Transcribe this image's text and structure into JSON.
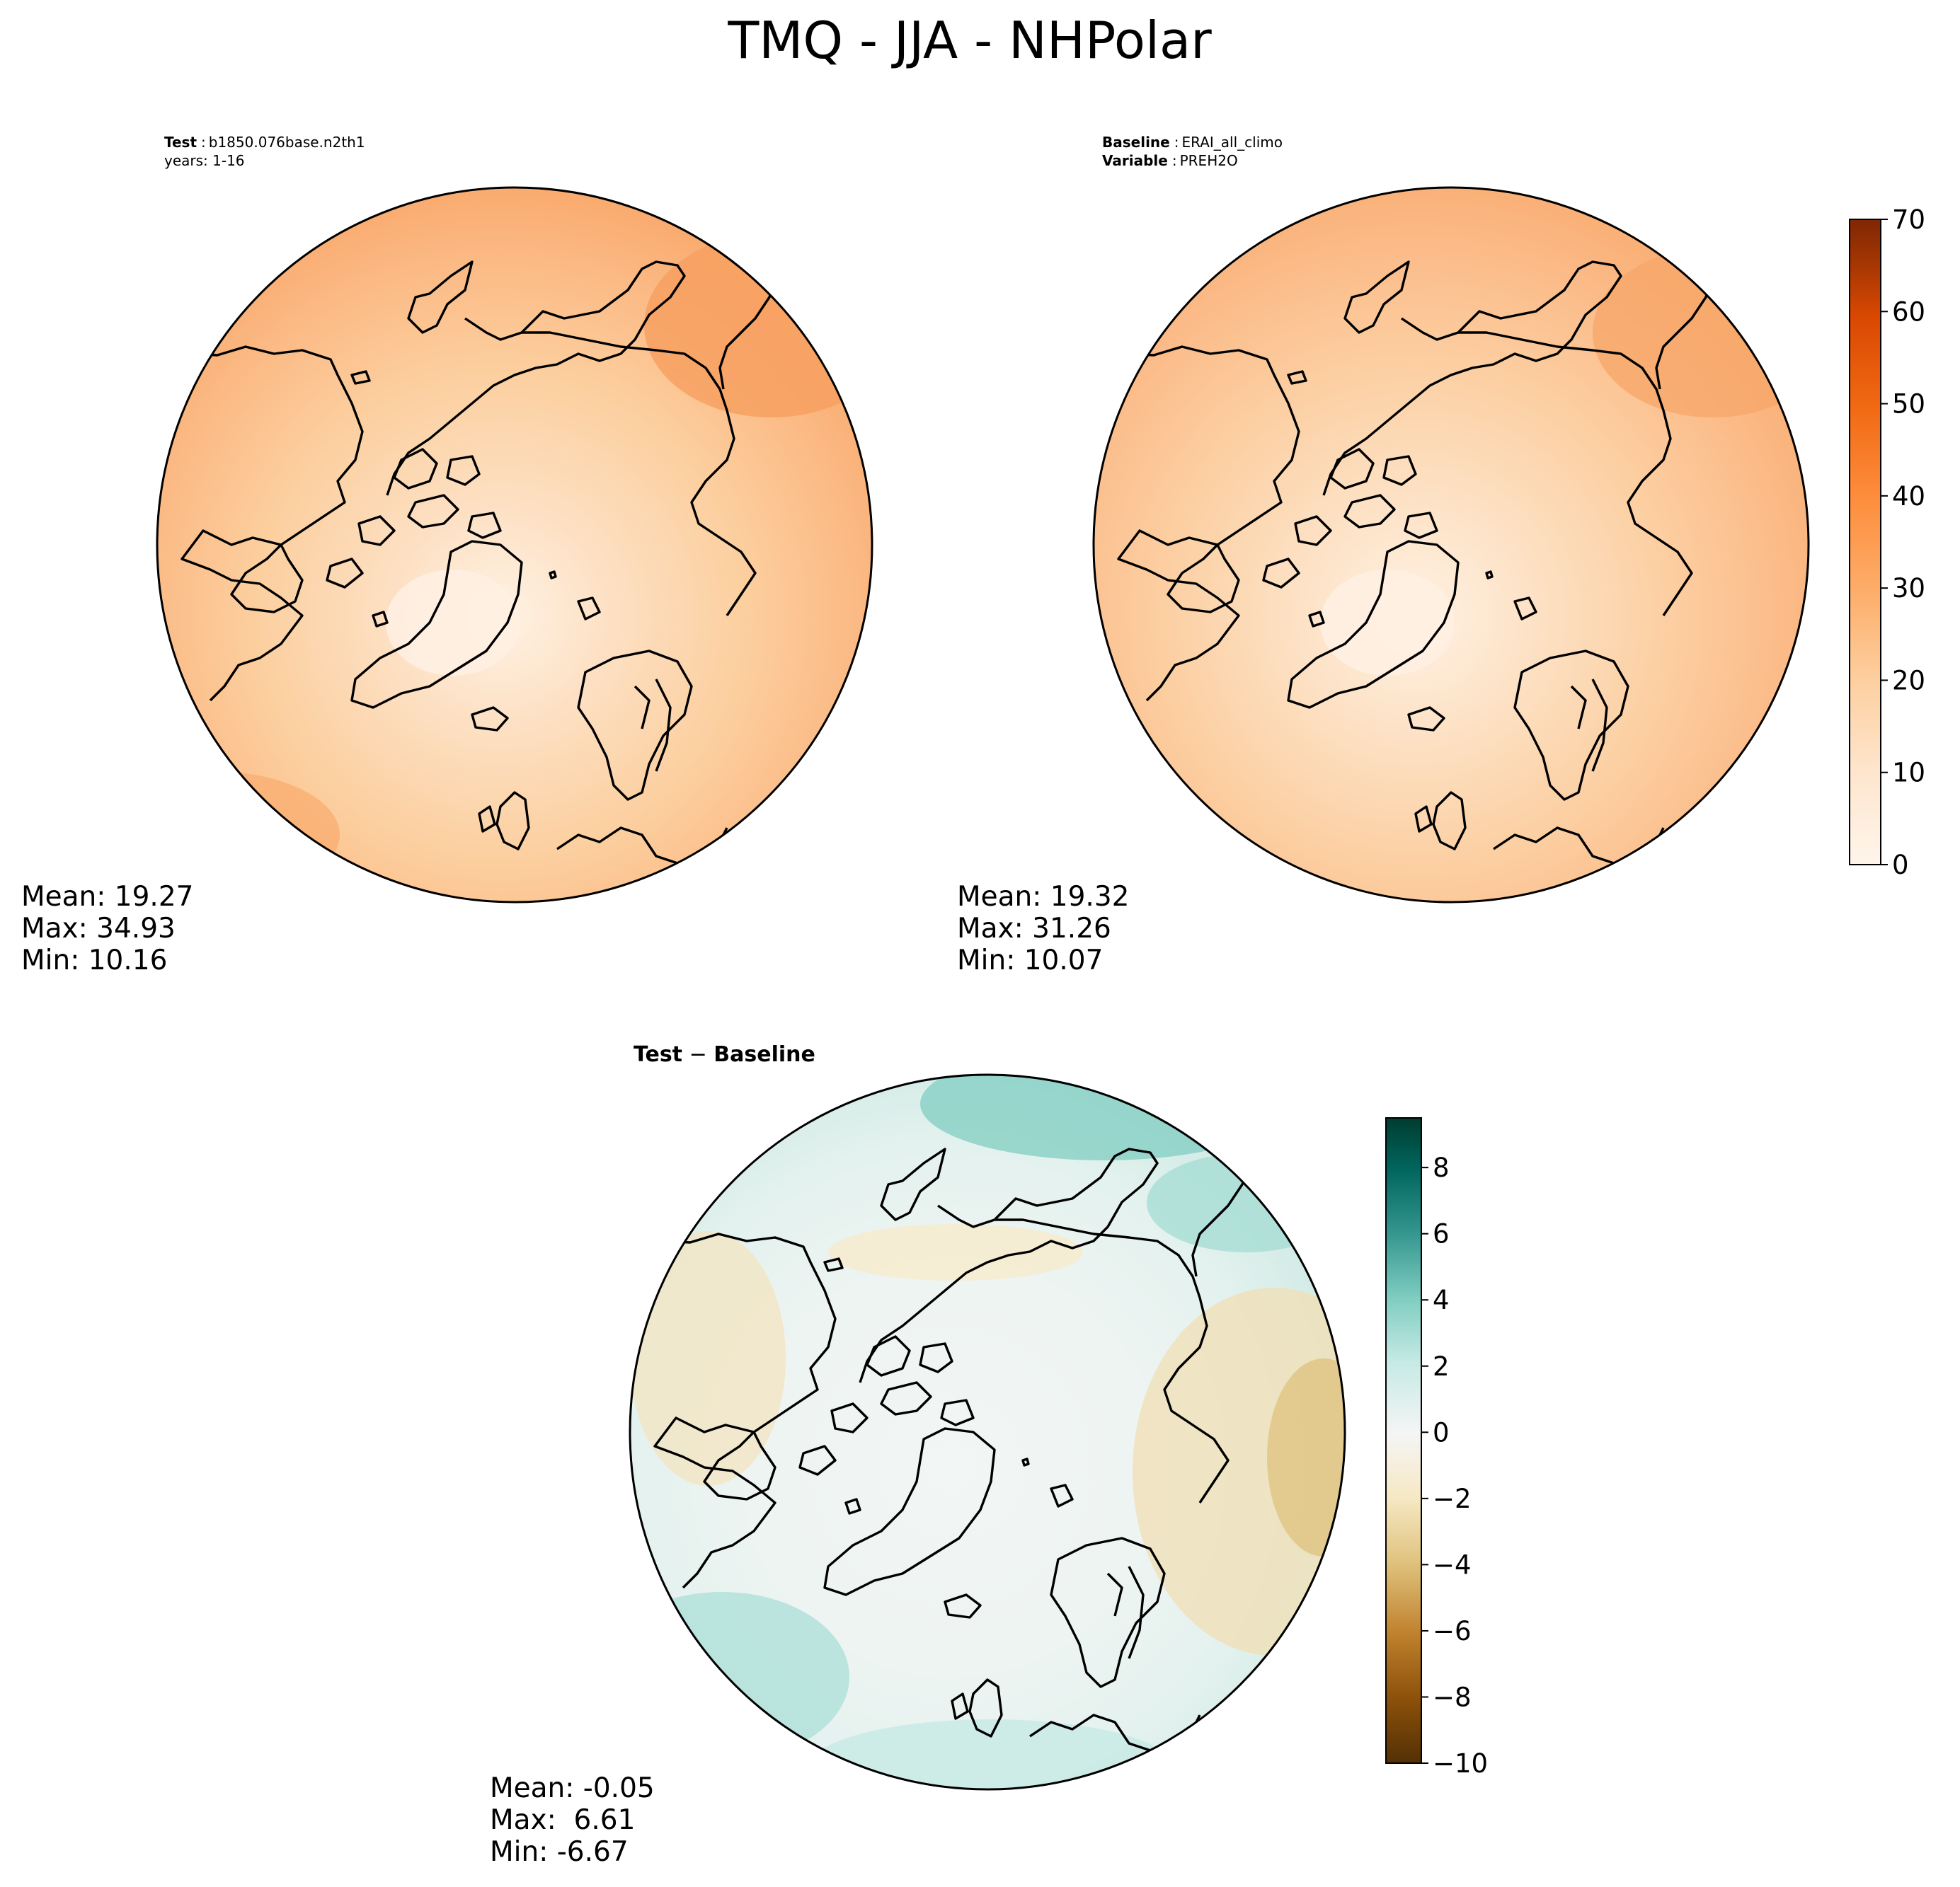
{
  "figure": {
    "title": "TMQ - JJA - NHPolar"
  },
  "test_panel": {
    "name_key": "Test",
    "name_value": "b1850.076base.n2th1",
    "years": "years: 1-16",
    "stats": {
      "mean": "Mean: 19.27",
      "max": "Max: 34.93",
      "min": "Min: 10.16"
    }
  },
  "baseline_panel": {
    "name_key": "Baseline",
    "name_value": "ERAI_all_climo",
    "variable_key": "Variable",
    "variable_value": "PREH2O",
    "stats": {
      "mean": "Mean: 19.32",
      "max": "Max: 31.26",
      "min": "Min: 10.07"
    }
  },
  "diff_panel": {
    "title_a": "Test",
    "title_sep": " − ",
    "title_b": "Baseline",
    "stats": {
      "mean": "Mean: -0.05",
      "max": "Max:  6.61",
      "min": "Min: -6.67"
    }
  },
  "colors": {
    "map_colormap": [
      "#fff5eb",
      "#fee6ce",
      "#fdd0a2",
      "#fdae6b",
      "#fd8d3c",
      "#f16913",
      "#d94801",
      "#a63603",
      "#7f2704"
    ],
    "diff_colormap": [
      "#543005",
      "#8c510a",
      "#bf812d",
      "#dfc27d",
      "#f6e8c3",
      "#f5f5f5",
      "#c7eae5",
      "#80cdc1",
      "#35978f",
      "#01665e",
      "#003c30"
    ],
    "coastline": "#000000"
  },
  "chart_data": [
    {
      "type": "heatmap",
      "panel": "test",
      "projection": "north-polar-stereographic",
      "variable": "TMQ",
      "season": "JJA",
      "region": "NHPolar",
      "mean": 19.27,
      "max": 34.93,
      "min": 10.16
    },
    {
      "type": "heatmap",
      "panel": "baseline",
      "projection": "north-polar-stereographic",
      "variable": "PREH2O",
      "mean": 19.32,
      "max": 31.26,
      "min": 10.07,
      "colorbar": {
        "range": [
          0,
          70
        ],
        "ticks": [
          0,
          10,
          20,
          30,
          40,
          50,
          60,
          70
        ],
        "tick_labels": [
          "0",
          "10",
          "20",
          "30",
          "40",
          "50",
          "60",
          "70"
        ]
      }
    },
    {
      "type": "heatmap",
      "panel": "difference",
      "projection": "north-polar-stereographic",
      "mean": -0.05,
      "max": 6.61,
      "min": -6.67,
      "colorbar": {
        "range": [
          -10,
          9.5
        ],
        "ticks": [
          -10,
          -8,
          -6,
          -4,
          -2,
          0,
          2,
          4,
          6,
          8
        ],
        "tick_labels": [
          "−10",
          "−8",
          "−6",
          "−4",
          "−2",
          "0",
          "2",
          "4",
          "6",
          "8"
        ]
      }
    }
  ]
}
